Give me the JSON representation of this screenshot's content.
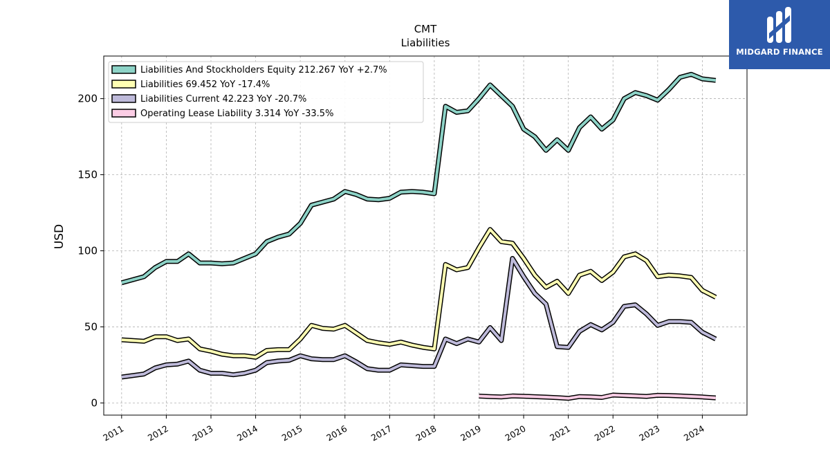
{
  "chart_data": {
    "type": "line",
    "title": "CMT",
    "subtitle": "Liabilities",
    "ylabel": "USD",
    "xlabel": "",
    "xlim": [
      2010.6,
      2025.0
    ],
    "ylim": [
      -8,
      228
    ],
    "yticks": [
      0,
      50,
      100,
      150,
      200
    ],
    "xticks": [
      "2011",
      "2012",
      "2013",
      "2014",
      "2015",
      "2016",
      "2017",
      "2018",
      "2019",
      "2020",
      "2021",
      "2022",
      "2023",
      "2024"
    ],
    "grid": true,
    "legend_position": "top-left",
    "series": [
      {
        "name": "Liabilities And Stockholders Equity  212.267 YoY +2.7%",
        "color": "#8dd3c7",
        "x": [
          2011.0,
          2011.5,
          2011.75,
          2012.0,
          2012.25,
          2012.5,
          2012.75,
          2013.0,
          2013.25,
          2013.5,
          2013.75,
          2014.0,
          2014.25,
          2014.5,
          2014.75,
          2015.0,
          2015.25,
          2015.5,
          2015.75,
          2016.0,
          2016.25,
          2016.5,
          2016.75,
          2017.0,
          2017.25,
          2017.5,
          2017.75,
          2018.0,
          2018.25,
          2018.5,
          2018.75,
          2019.0,
          2019.25,
          2019.5,
          2019.75,
          2020.0,
          2020.25,
          2020.5,
          2020.75,
          2021.0,
          2021.25,
          2021.5,
          2021.75,
          2022.0,
          2022.25,
          2022.5,
          2022.75,
          2023.0,
          2023.25,
          2023.5,
          2023.75,
          2024.0,
          2024.3
        ],
        "values": [
          79,
          83,
          89,
          93,
          93,
          98,
          92,
          92,
          91.5,
          92,
          95,
          98,
          106,
          109,
          111,
          118,
          130,
          132,
          134,
          139,
          137,
          134,
          133.5,
          134.5,
          138.5,
          139,
          138.5,
          137.5,
          195,
          191,
          192,
          200,
          209,
          202,
          195,
          180,
          175,
          166,
          173,
          166,
          181,
          188,
          180,
          186,
          200,
          204,
          202,
          199,
          206,
          214,
          216,
          213,
          212
        ]
      },
      {
        "name": "Liabilities  69.452 YoY -17.4%",
        "color": "#ffffb3",
        "x": [
          2011.0,
          2011.5,
          2011.75,
          2012.0,
          2012.25,
          2012.5,
          2012.75,
          2013.0,
          2013.25,
          2013.5,
          2013.75,
          2014.0,
          2014.25,
          2014.5,
          2014.75,
          2015.0,
          2015.25,
          2015.5,
          2015.75,
          2016.0,
          2016.25,
          2016.5,
          2016.75,
          2017.0,
          2017.25,
          2017.5,
          2017.75,
          2018.0,
          2018.25,
          2018.5,
          2018.75,
          2019.0,
          2019.25,
          2019.5,
          2019.75,
          2020.0,
          2020.25,
          2020.5,
          2020.75,
          2021.0,
          2021.25,
          2021.5,
          2021.75,
          2022.0,
          2022.25,
          2022.5,
          2022.75,
          2023.0,
          2023.25,
          2023.5,
          2023.75,
          2024.0,
          2024.3
        ],
        "values": [
          41.5,
          40.5,
          43.5,
          43.5,
          41,
          42,
          35.5,
          34,
          32,
          31,
          31,
          30,
          34.5,
          35,
          35,
          42,
          51,
          49,
          48.5,
          51,
          46,
          41,
          39.5,
          38.5,
          40,
          38,
          36.5,
          35.5,
          91,
          87.5,
          89,
          102,
          114,
          106,
          105,
          95,
          84,
          76,
          80,
          72,
          84,
          86.5,
          80.5,
          86,
          96,
          98,
          93.5,
          83,
          84,
          83.5,
          82.5,
          74,
          69.5
        ]
      },
      {
        "name": "Liabilities Current  42.223 YoY -20.7%",
        "color": "#bebada",
        "x": [
          2011.0,
          2011.5,
          2011.75,
          2012.0,
          2012.25,
          2012.5,
          2012.75,
          2013.0,
          2013.25,
          2013.5,
          2013.75,
          2014.0,
          2014.25,
          2014.5,
          2014.75,
          2015.0,
          2015.25,
          2015.5,
          2015.75,
          2016.0,
          2016.25,
          2016.5,
          2016.75,
          2017.0,
          2017.25,
          2017.5,
          2017.75,
          2018.0,
          2018.25,
          2018.5,
          2018.75,
          2019.0,
          2019.25,
          2019.5,
          2019.75,
          2020.0,
          2020.25,
          2020.5,
          2020.75,
          2021.0,
          2021.25,
          2021.5,
          2021.75,
          2022.0,
          2022.25,
          2022.5,
          2022.75,
          2023.0,
          2023.25,
          2023.5,
          2023.75,
          2024.0,
          2024.3
        ],
        "values": [
          17,
          19,
          23,
          25,
          25.5,
          27.5,
          21.5,
          19.5,
          19.5,
          18.5,
          19.5,
          21.5,
          26.5,
          27.5,
          28,
          31,
          29,
          28.5,
          28.5,
          31,
          27,
          22.5,
          21.5,
          21.5,
          25,
          24.5,
          24,
          24,
          42,
          39,
          42,
          40,
          49.5,
          41,
          95,
          83,
          72,
          65,
          37,
          36.5,
          47,
          51.5,
          48,
          53,
          63.5,
          64.5,
          58.5,
          51,
          53.5,
          53.5,
          53,
          46.5,
          42
        ]
      },
      {
        "name": "Operating Lease Liability  3.314 YoY -33.5%",
        "color": "#fccde5",
        "x": [
          2019.0,
          2019.25,
          2019.5,
          2019.75,
          2020.0,
          2020.25,
          2020.5,
          2020.75,
          2021.0,
          2021.25,
          2021.5,
          2021.75,
          2022.0,
          2022.25,
          2022.5,
          2022.75,
          2023.0,
          2023.25,
          2023.5,
          2023.75,
          2024.0,
          2024.3
        ],
        "values": [
          4.5,
          4.2,
          3.9,
          4.6,
          4.4,
          4.1,
          3.8,
          3.5,
          3.0,
          4.2,
          4.0,
          3.6,
          5.2,
          4.9,
          4.6,
          4.3,
          5.0,
          4.9,
          4.6,
          4.3,
          3.9,
          3.3
        ]
      }
    ]
  },
  "logo": {
    "text": "MIDGARD FINANCE",
    "bg_color": "#2d5aab"
  }
}
